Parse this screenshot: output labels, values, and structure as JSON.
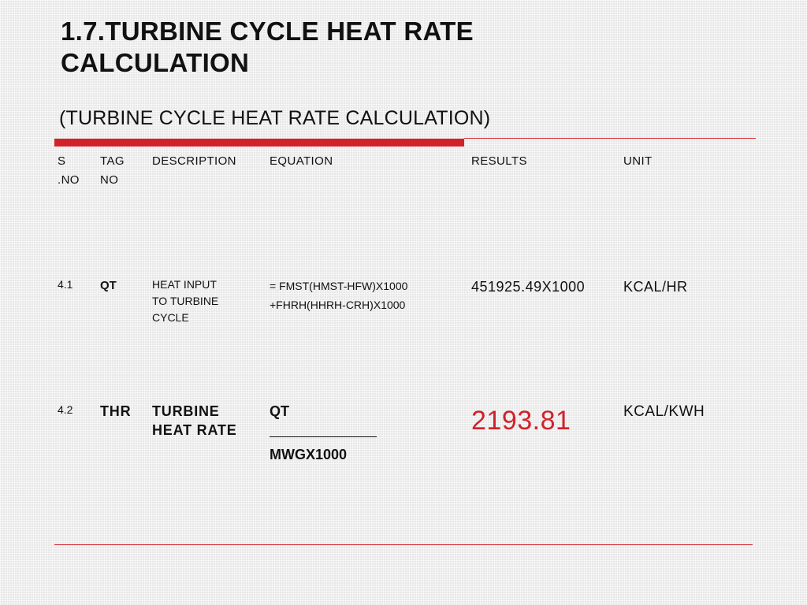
{
  "title": "1.7.TURBINE CYCLE HEAT RATE CALCULATION",
  "subtitle": "(TURBINE CYCLE HEAT RATE CALCULATION)",
  "table": {
    "headers": {
      "sno_line1": "S",
      "sno_line2": ".NO",
      "tag_line1": "TAG",
      "tag_line2": "NO",
      "description": "DESCRIPTION",
      "equation": "EQUATION",
      "results": "RESULTS",
      "unit": "UNIT"
    },
    "rows": [
      {
        "sno": "4.1",
        "tag": "QT",
        "description_lines": [
          "HEAT INPUT",
          "TO TURBINE",
          "CYCLE"
        ],
        "equation_lines": [
          "= FMST(HMST-HFW)X1000",
          "+FHRH(HHRH-CRH)X1000"
        ],
        "result": "451925.49X1000",
        "unit": "KCAL/HR"
      },
      {
        "sno": "4.2",
        "tag": "THR",
        "description_lines": [
          "TURBINE",
          "HEAT RATE"
        ],
        "equation_numerator": "QT",
        "equation_denominator": "MWGX1000",
        "result": "2193.81",
        "unit": "KCAL/KWH"
      }
    ]
  },
  "colors": {
    "accent_red": "#d0222b",
    "background": "#e7e7e7"
  }
}
